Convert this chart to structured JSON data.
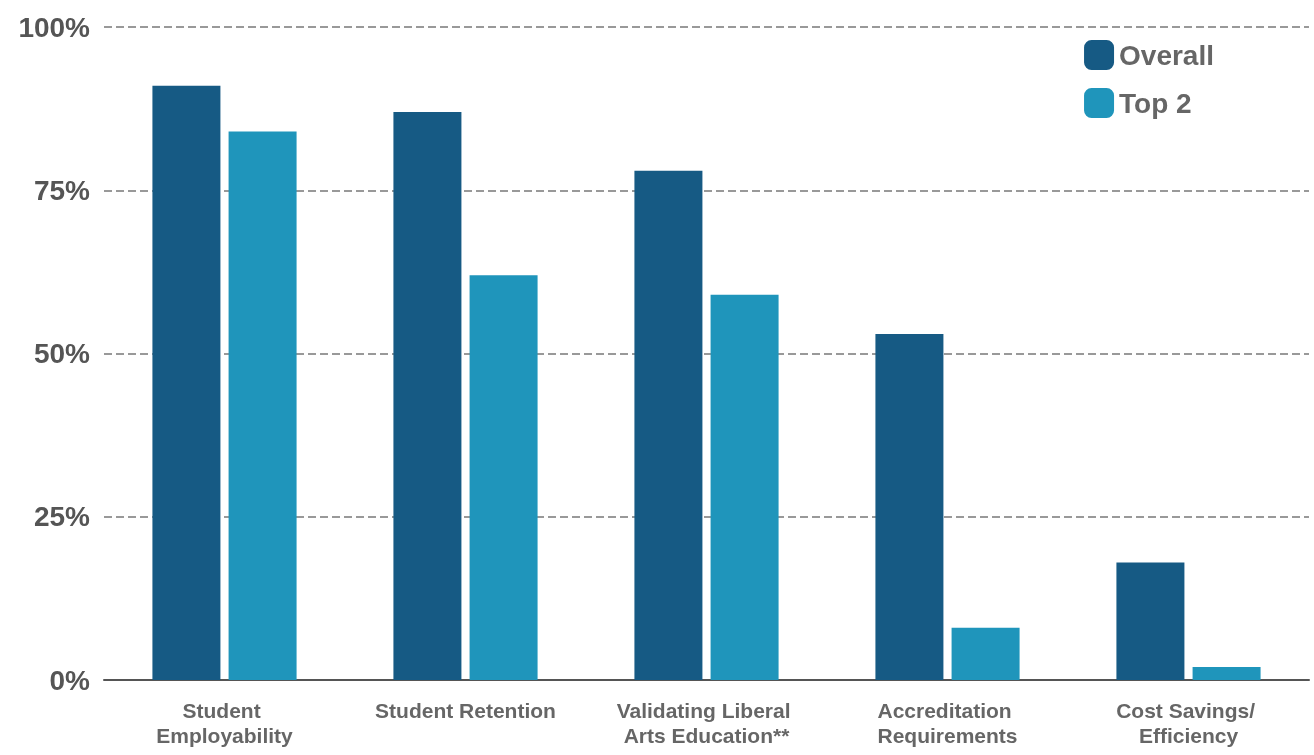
{
  "chart_data": {
    "type": "bar",
    "categories": [
      "Student Employability",
      "Student Retention",
      "Validating Liberal Arts Education**",
      "Accreditation Requirements",
      "Cost Savings/ Efficiency"
    ],
    "series": [
      {
        "name": "Overall",
        "color": "#165a84",
        "values": [
          91,
          87,
          78,
          53,
          18
        ]
      },
      {
        "name": "Top 2",
        "color": "#1f95bb",
        "values": [
          84,
          62,
          59,
          8,
          2
        ]
      }
    ],
    "ylim": [
      0,
      100
    ],
    "yticks": [
      {
        "value": 0,
        "label": "0%"
      },
      {
        "value": 25,
        "label": "25%"
      },
      {
        "value": 50,
        "label": "50%"
      },
      {
        "value": 75,
        "label": "75%"
      },
      {
        "value": 100,
        "label": "100%"
      }
    ],
    "grid": "y",
    "legend": "top right"
  }
}
